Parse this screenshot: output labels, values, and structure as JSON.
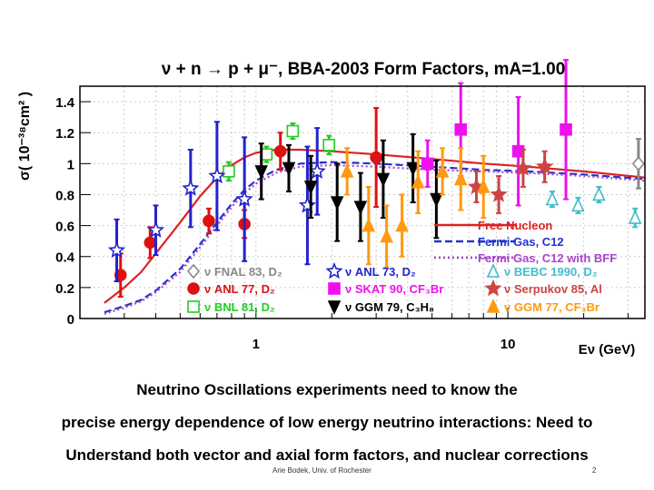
{
  "chart_data": {
    "type": "scatter",
    "title": "ν + n → p + μ⁻, BBA-2003 Form Factors, mA=1.00",
    "ylabel": "σ( 10⁻³⁸cm² )",
    "xlabel": "Eν (GeV)",
    "x_scale": "log",
    "xlim": [
      0.2,
      35
    ],
    "ylim": [
      0,
      1.5
    ],
    "x_ticks": [
      {
        "value": 1,
        "label": "1"
      },
      {
        "value": 10,
        "label": "10"
      }
    ],
    "y_ticks": [
      {
        "value": 0,
        "label": "0"
      },
      {
        "value": 0.2,
        "label": "0.2"
      },
      {
        "value": 0.4,
        "label": "0.4"
      },
      {
        "value": 0.6,
        "label": "0.6"
      },
      {
        "value": 0.8,
        "label": "0.8"
      },
      {
        "value": 1.0,
        "label": "1"
      },
      {
        "value": 1.2,
        "label": "1.2"
      },
      {
        "value": 1.4,
        "label": "1.4"
      }
    ],
    "grid": true,
    "curves": [
      {
        "name": "Free Nucleon",
        "color": "#dd2222",
        "dash": "solid",
        "x": [
          0.25,
          0.3,
          0.35,
          0.4,
          0.5,
          0.6,
          0.7,
          0.8,
          0.9,
          1.0,
          1.2,
          1.5,
          2,
          3,
          5,
          8,
          12,
          20,
          35
        ],
        "y": [
          0.1,
          0.2,
          0.3,
          0.42,
          0.62,
          0.79,
          0.91,
          0.99,
          1.04,
          1.07,
          1.09,
          1.09,
          1.08,
          1.06,
          1.03,
          1.0,
          0.98,
          0.95,
          0.91
        ]
      },
      {
        "name": "Fermi Gas, C12",
        "color": "#2233cc",
        "dash": "dashed",
        "x": [
          0.25,
          0.3,
          0.35,
          0.4,
          0.5,
          0.6,
          0.7,
          0.8,
          0.9,
          1.0,
          1.2,
          1.5,
          2,
          3,
          5,
          8,
          12,
          20,
          35
        ],
        "y": [
          0.04,
          0.08,
          0.12,
          0.18,
          0.32,
          0.48,
          0.62,
          0.74,
          0.83,
          0.89,
          0.96,
          1.0,
          1.01,
          1.0,
          0.98,
          0.96,
          0.95,
          0.93,
          0.9
        ]
      },
      {
        "name": "Fermi Gas, C12 with BFF",
        "color": "#aa44cc",
        "dash": "dotted",
        "x": [
          0.25,
          0.3,
          0.35,
          0.4,
          0.5,
          0.6,
          0.7,
          0.8,
          0.9,
          1.0,
          1.2,
          1.5,
          2,
          3,
          5,
          8,
          12,
          20,
          35
        ],
        "y": [
          0.03,
          0.07,
          0.11,
          0.17,
          0.3,
          0.46,
          0.6,
          0.72,
          0.81,
          0.87,
          0.94,
          0.98,
          0.99,
          0.98,
          0.96,
          0.95,
          0.94,
          0.92,
          0.89
        ]
      }
    ],
    "series": [
      {
        "name": "ν FNAL 83, D₂",
        "marker": "diamond-open",
        "color": "#888888",
        "points": [
          {
            "x": 33,
            "y": 1.0,
            "err": 0.16
          }
        ]
      },
      {
        "name": "ν ANL 77, D₂",
        "marker": "circle",
        "color": "#dd1111",
        "points": [
          {
            "x": 0.29,
            "y": 0.28,
            "err": 0.14
          },
          {
            "x": 0.38,
            "y": 0.49,
            "err": 0.1
          },
          {
            "x": 0.65,
            "y": 0.63,
            "err": 0.08
          },
          {
            "x": 0.9,
            "y": 0.61,
            "err": 0.09
          },
          {
            "x": 1.25,
            "y": 1.08,
            "err": 0.12
          },
          {
            "x": 3.0,
            "y": 1.04,
            "err": 0.32
          }
        ]
      },
      {
        "name": "ν BNL 81, D₂",
        "marker": "square-open",
        "color": "#22cc22",
        "points": [
          {
            "x": 0.78,
            "y": 0.95,
            "err": 0.06
          },
          {
            "x": 1.1,
            "y": 1.06,
            "err": 0.05
          },
          {
            "x": 1.4,
            "y": 1.21,
            "err": 0.05
          },
          {
            "x": 1.95,
            "y": 1.12,
            "err": 0.06
          }
        ]
      },
      {
        "name": "ν ANL 73, D₂",
        "marker": "star-open",
        "color": "#2222cc",
        "points": [
          {
            "x": 0.28,
            "y": 0.44,
            "err": 0.2
          },
          {
            "x": 0.4,
            "y": 0.57,
            "err": 0.16
          },
          {
            "x": 0.55,
            "y": 0.84,
            "err": 0.25
          },
          {
            "x": 0.7,
            "y": 0.92,
            "err": 0.35
          },
          {
            "x": 0.9,
            "y": 0.77,
            "err": 0.4
          },
          {
            "x": 1.6,
            "y": 0.73,
            "err": 0.38
          },
          {
            "x": 1.75,
            "y": 0.95,
            "err": 0.28
          }
        ]
      },
      {
        "name": "ν SKAT 90, CF₃Br",
        "marker": "square",
        "color": "#ee11ee",
        "points": [
          {
            "x": 4.8,
            "y": 1.0,
            "err": 0.15
          },
          {
            "x": 6.5,
            "y": 1.22,
            "err": 0.3
          },
          {
            "x": 11,
            "y": 1.08,
            "err": 0.35
          },
          {
            "x": 17,
            "y": 1.22,
            "err": 0.45
          }
        ]
      },
      {
        "name": "ν GGM 79, C₃H₈",
        "marker": "triangle-down",
        "color": "#000000",
        "points": [
          {
            "x": 1.05,
            "y": 0.95,
            "err": 0.18
          },
          {
            "x": 1.35,
            "y": 0.97,
            "err": 0.15
          },
          {
            "x": 1.65,
            "y": 0.85,
            "err": 0.2
          },
          {
            "x": 2.1,
            "y": 0.75,
            "err": 0.25
          },
          {
            "x": 2.6,
            "y": 0.72,
            "err": 0.22
          },
          {
            "x": 3.2,
            "y": 0.9,
            "err": 0.25
          },
          {
            "x": 4.2,
            "y": 0.97,
            "err": 0.22
          },
          {
            "x": 5.2,
            "y": 0.77,
            "err": 0.25
          }
        ]
      },
      {
        "name": "ν BEBC 1990, D₂",
        "marker": "triangle-open",
        "color": "#44bbcc",
        "points": [
          {
            "x": 15,
            "y": 0.77,
            "err": 0.05
          },
          {
            "x": 19,
            "y": 0.73,
            "err": 0.05
          },
          {
            "x": 23,
            "y": 0.8,
            "err": 0.05
          },
          {
            "x": 32,
            "y": 0.65,
            "err": 0.06
          }
        ]
      },
      {
        "name": "ν Serpukov 85, Al",
        "marker": "star",
        "color": "#cc4444",
        "points": [
          {
            "x": 7.5,
            "y": 0.85,
            "err": 0.1
          },
          {
            "x": 9.2,
            "y": 0.8,
            "err": 0.12
          },
          {
            "x": 11.5,
            "y": 0.97,
            "err": 0.12
          },
          {
            "x": 14,
            "y": 0.98,
            "err": 0.1
          }
        ]
      },
      {
        "name": "ν GGM 77, CF₃Br",
        "marker": "triangle",
        "color": "#ff9911",
        "points": [
          {
            "x": 2.3,
            "y": 0.95,
            "err": 0.15
          },
          {
            "x": 2.8,
            "y": 0.6,
            "err": 0.25
          },
          {
            "x": 3.3,
            "y": 0.53,
            "err": 0.2
          },
          {
            "x": 3.8,
            "y": 0.6,
            "err": 0.2
          },
          {
            "x": 4.4,
            "y": 0.88,
            "err": 0.2
          },
          {
            "x": 5.5,
            "y": 0.95,
            "err": 0.15
          },
          {
            "x": 6.5,
            "y": 0.9,
            "err": 0.2
          },
          {
            "x": 8,
            "y": 0.85,
            "err": 0.2
          }
        ]
      }
    ]
  },
  "slide": {
    "line1": "Neutrino Oscillations experiments need to know the",
    "line2": "precise energy dependence of low energy neutrino interactions: Need to",
    "line3": "Understand both vector and axial form factors,  and nuclear corrections",
    "author": "Arie Bodek, Univ. of Rochester",
    "page": "2"
  }
}
